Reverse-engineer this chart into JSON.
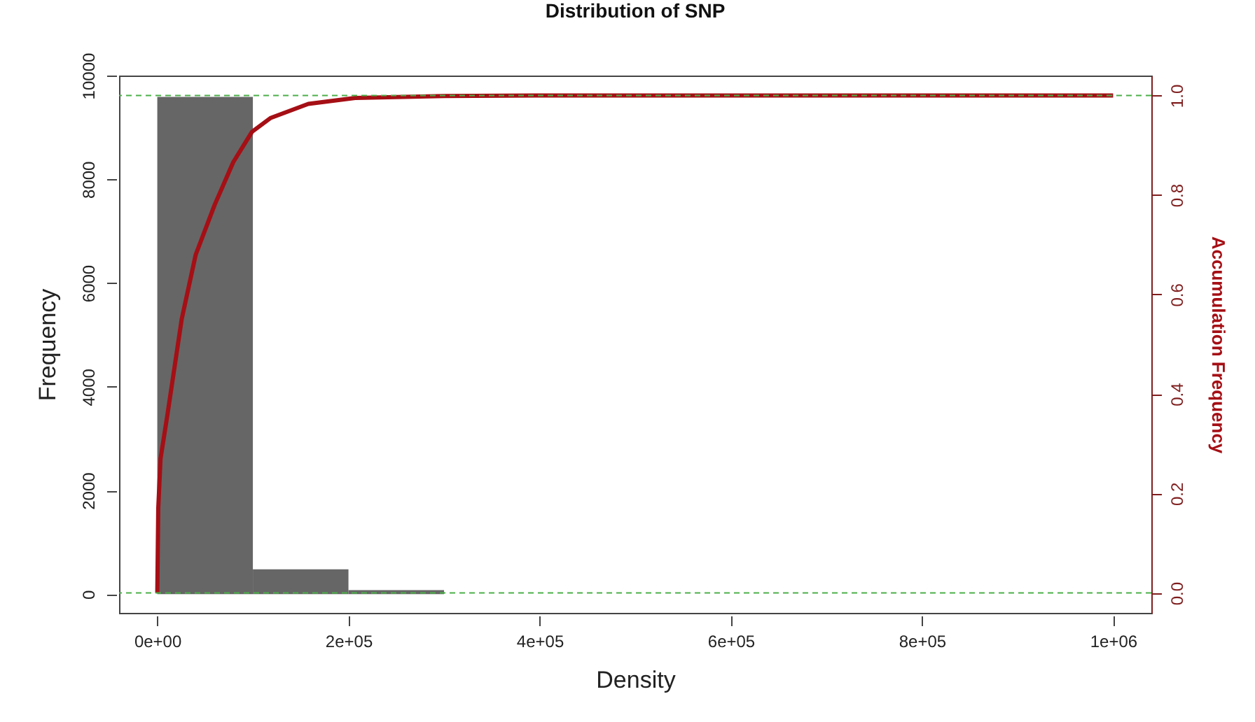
{
  "chart_data": {
    "type": "histogram",
    "title": "Distribution of SNP",
    "xlabel": "Density",
    "ylabel": "Frequency",
    "y2label": "Accumulation Frequency",
    "bins": [
      0,
      100000,
      200000,
      300000,
      400000,
      500000,
      600000,
      700000,
      800000,
      900000,
      1000000
    ],
    "values": [
      9590,
      480,
      80,
      null,
      null,
      null,
      null,
      0,
      0,
      0
    ],
    "color": "#666666",
    "series": [
      {
        "type": "line",
        "axis": "y2",
        "color": "#a50f15",
        "x": [
          0,
          1000,
          3400,
          10750,
          25500,
          40200,
          60000,
          79500,
          99100,
          118800,
          158000,
          207000,
          300000,
          400000,
          600000,
          800000,
          1000000
        ],
        "values": [
          0,
          0.17,
          0.27,
          0.36,
          0.55,
          0.68,
          0.78,
          0.866,
          0.927,
          0.955,
          0.983,
          0.995,
          0.999,
          1,
          1,
          1,
          1
        ]
      }
    ],
    "xlim": [
      -40000,
      1040000
    ],
    "xticks": [
      {
        "value": 0,
        "label": "0e+00"
      },
      {
        "value": 200000,
        "label": "2e+05"
      },
      {
        "value": 400000,
        "label": "4e+05"
      },
      {
        "value": 600000,
        "label": "6e+05"
      },
      {
        "value": 800000,
        "label": "8e+05"
      },
      {
        "value": 1000000,
        "label": "1e+06"
      }
    ],
    "ylim": [
      -360,
      10000
    ],
    "yticks": [
      0,
      2000,
      4000,
      6000,
      8000,
      10000
    ],
    "y2lim": [
      -0.04,
      1.04
    ],
    "y2ticks": [
      {
        "value": 0,
        "label": "0.0"
      },
      {
        "value": 0.2,
        "label": "0.2"
      },
      {
        "value": 0.4,
        "label": "0.4"
      },
      {
        "value": 0.6,
        "label": "0.6"
      },
      {
        "value": 0.8,
        "label": "0.8"
      },
      {
        "value": 1,
        "label": "1.0"
      }
    ],
    "ref_lines": [
      {
        "axis": "y2",
        "value": 0,
        "color": "#4daf4a",
        "line_style": "dashed"
      },
      {
        "axis": "y2",
        "value": 1,
        "color": "#4daf4a",
        "line_style": "dashed"
      }
    ],
    "grid": false
  }
}
